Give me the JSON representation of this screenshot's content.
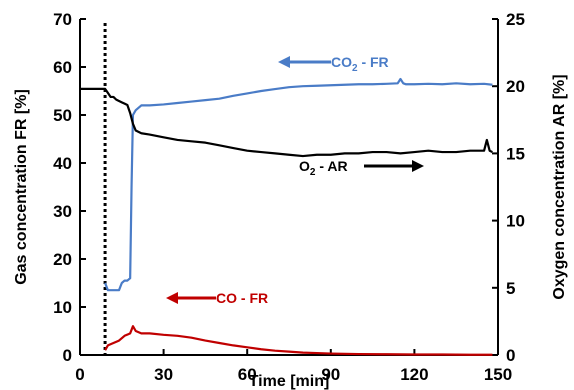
{
  "chart_data": {
    "type": "line",
    "title": "",
    "xlabel": "Time [min]",
    "ylabel_left": "Gas concentration FR [%]",
    "ylabel_right": "Oxygen concentration AR [%]",
    "xlim": [
      0,
      150
    ],
    "ylim_left": [
      0,
      70
    ],
    "ylim_right": [
      0,
      25
    ],
    "x_ticks": [
      0,
      30,
      60,
      90,
      120,
      150
    ],
    "y_ticks_left": [
      0,
      10,
      20,
      30,
      40,
      50,
      60,
      70
    ],
    "y_ticks_right": [
      0,
      5,
      10,
      15,
      20,
      25
    ],
    "grid": false,
    "legend": "none",
    "vertical_marker_x": 9,
    "series": [
      {
        "name": "CO2 - FR",
        "axis": "left",
        "color": "#4a7cc7",
        "x": [
          0,
          9,
          9.01,
          10,
          12,
          14,
          15,
          16,
          17,
          18,
          18.5,
          19,
          20,
          21,
          22,
          25,
          30,
          35,
          40,
          45,
          50,
          55,
          60,
          65,
          70,
          75,
          80,
          85,
          90,
          95,
          100,
          105,
          110,
          114,
          115,
          116,
          117,
          120,
          125,
          130,
          135,
          140,
          145,
          148
        ],
        "y": [
          null,
          null,
          15,
          13.5,
          13.5,
          13.5,
          15,
          15.5,
          15.5,
          16,
          35,
          50,
          51,
          51.5,
          52,
          52,
          52.2,
          52.5,
          52.8,
          53.1,
          53.4,
          54,
          54.5,
          55,
          55.4,
          55.8,
          56,
          56.1,
          56.2,
          56.3,
          56.4,
          56.4,
          56.5,
          56.6,
          57.5,
          56.6,
          56.4,
          56.4,
          56.5,
          56.4,
          56.6,
          56.4,
          56.5,
          56.3
        ]
      },
      {
        "name": "O2 - AR",
        "axis": "right",
        "color": "#000000",
        "x": [
          0,
          5,
          9,
          10,
          11,
          12,
          13,
          14,
          15,
          16,
          17,
          18,
          19,
          20,
          22,
          25,
          30,
          35,
          40,
          45,
          50,
          55,
          60,
          65,
          70,
          75,
          80,
          85,
          90,
          95,
          100,
          105,
          110,
          115,
          120,
          125,
          130,
          135,
          140,
          145,
          146,
          147,
          148
        ],
        "y": [
          19.8,
          19.8,
          19.8,
          19.5,
          19.2,
          19.2,
          19.0,
          18.9,
          18.8,
          18.7,
          18.6,
          18.0,
          17.2,
          16.7,
          16.5,
          16.4,
          16.2,
          16.0,
          15.9,
          15.8,
          15.6,
          15.4,
          15.2,
          15.1,
          15.0,
          14.9,
          14.8,
          14.9,
          14.9,
          15.0,
          15.0,
          15.1,
          15.1,
          15.0,
          15.1,
          15.2,
          15.1,
          15.1,
          15.2,
          15.2,
          16.0,
          15.2,
          15.1
        ]
      },
      {
        "name": "CO - FR",
        "axis": "left",
        "color": "#c00000",
        "x": [
          0,
          9,
          9.01,
          10,
          12,
          14,
          16,
          18,
          19,
          20,
          22,
          25,
          30,
          35,
          40,
          45,
          50,
          55,
          60,
          65,
          70,
          75,
          80,
          85,
          90,
          100,
          110,
          120,
          130,
          140,
          148
        ],
        "y": [
          null,
          null,
          1,
          2,
          2.5,
          3,
          4,
          4.5,
          6,
          5,
          4.5,
          4.5,
          4.2,
          4.0,
          3.6,
          3.0,
          2.5,
          2.0,
          1.6,
          1.2,
          0.9,
          0.7,
          0.5,
          0.4,
          0.3,
          0.2,
          0.15,
          0.1,
          0.1,
          0.05,
          0.05
        ]
      }
    ],
    "annotations": [
      {
        "id": "co2",
        "base": "CO",
        "sub": "2",
        "suffix": " - FR",
        "color": "#4a7cc7",
        "arrow": "left"
      },
      {
        "id": "o2",
        "base": "O",
        "sub": "2",
        "suffix": " - AR",
        "color": "#000000",
        "arrow": "right"
      },
      {
        "id": "co",
        "base": "CO - FR",
        "sub": "",
        "suffix": "",
        "color": "#c00000",
        "arrow": "left"
      }
    ]
  }
}
